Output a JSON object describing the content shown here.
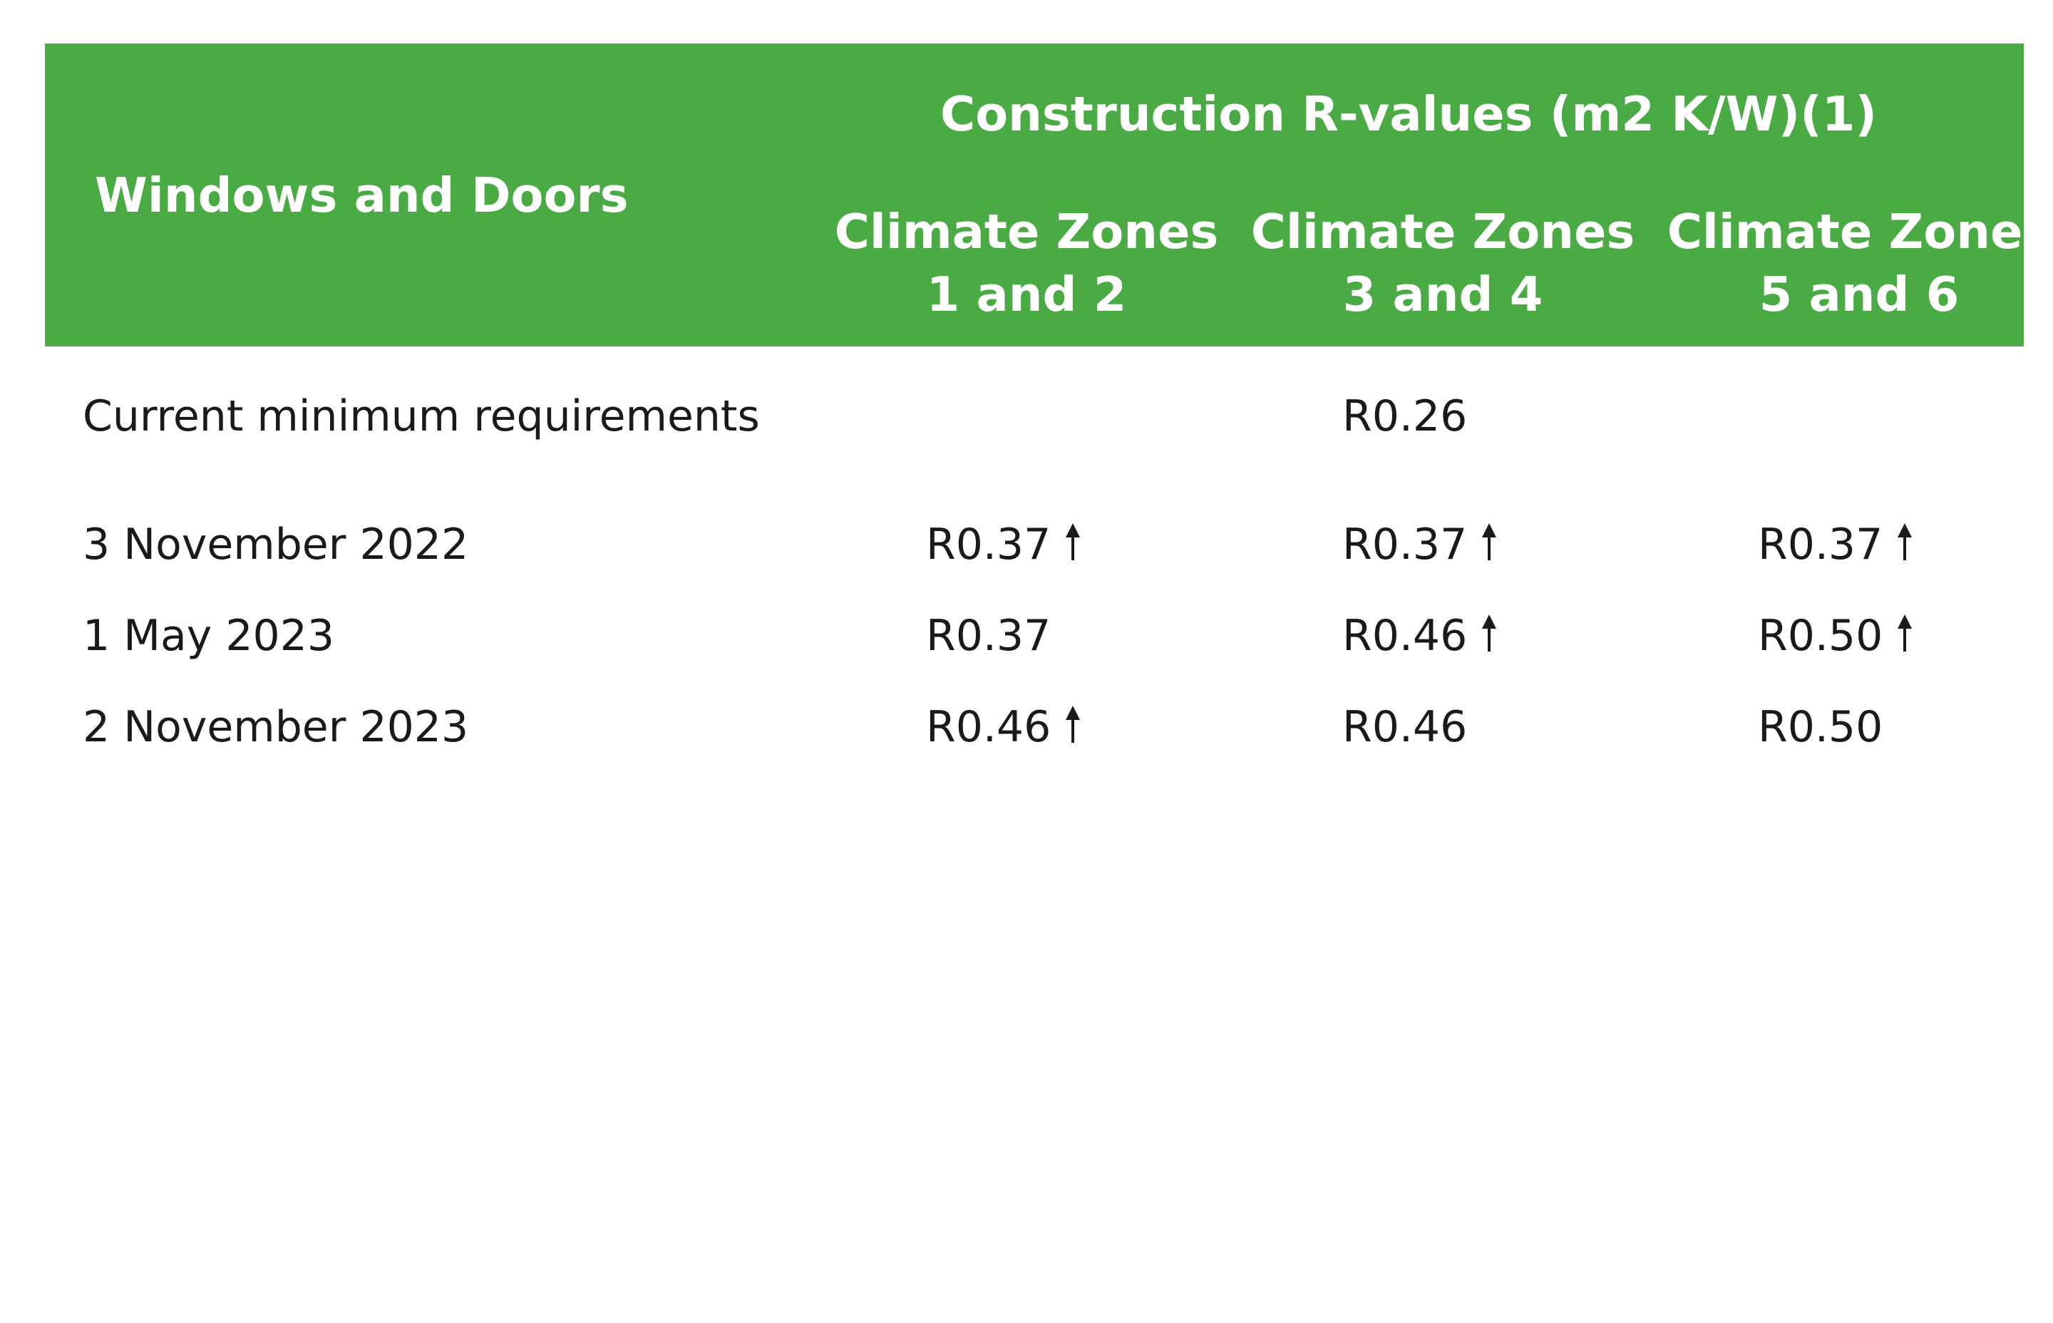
{
  "table": {
    "row_header": "Windows and Doors",
    "group_header": "Construction R-values (m2 K/W)(1)",
    "columns": [
      {
        "line1": "Climate Zones",
        "line2": "1 and 2"
      },
      {
        "line1": "Climate Zones",
        "line2": "3 and 4"
      },
      {
        "line1": "Climate Zones",
        "line2": "5 and 6"
      }
    ],
    "current": {
      "label": "Current minimum requirements",
      "value": "R0.26"
    },
    "rows": [
      {
        "label": "3 November 2022",
        "cells": [
          {
            "value": "R0.37",
            "increase": true
          },
          {
            "value": "R0.37",
            "increase": true
          },
          {
            "value": "R0.37",
            "increase": true
          }
        ]
      },
      {
        "label": "1 May 2023",
        "cells": [
          {
            "value": "R0.37",
            "increase": false
          },
          {
            "value": "R0.46",
            "increase": true
          },
          {
            "value": "R0.50",
            "increase": true
          }
        ]
      },
      {
        "label": "2 November 2023",
        "cells": [
          {
            "value": "R0.46",
            "increase": true
          },
          {
            "value": "R0.46",
            "increase": false
          },
          {
            "value": "R0.50",
            "increase": false
          }
        ]
      }
    ],
    "colors": {
      "header_bg": "#4aaa44",
      "header_text": "#ffffff",
      "body_text": "#1a1a1a"
    },
    "icons": {
      "increase": "arrow-up-icon"
    }
  }
}
